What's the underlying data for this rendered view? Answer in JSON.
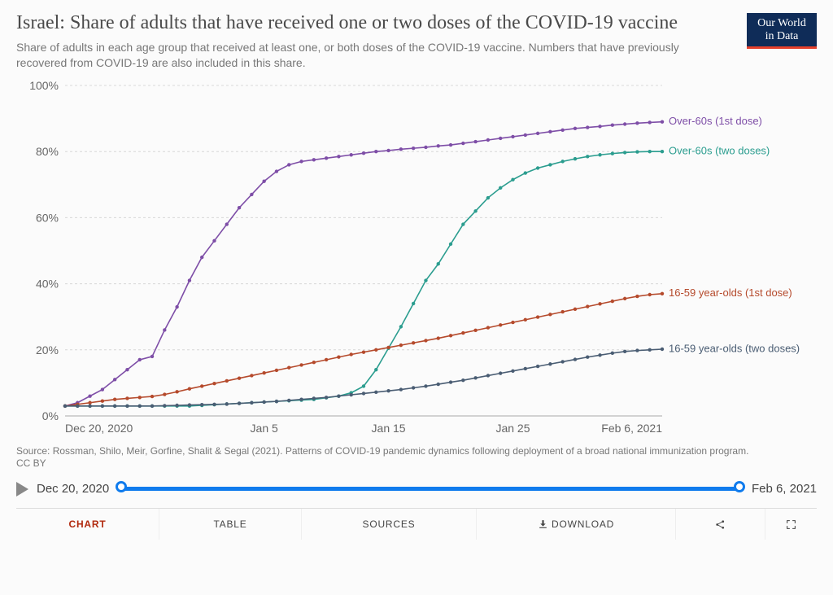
{
  "header": {
    "title": "Israel: Share of adults that have received one or two doses of the COVID-19 vaccine",
    "subtitle": "Share of adults in each age group that received at least one, or both doses of the COVID-19 vaccine. Numbers that have previously recovered from COVID-19 are also included in this share.",
    "logo_line1": "Our World",
    "logo_line2": "in Data"
  },
  "chart": {
    "type": "line",
    "ylim": [
      0,
      100
    ],
    "yticks": [
      0,
      20,
      40,
      60,
      80,
      100
    ],
    "ytick_labels": [
      "0%",
      "20%",
      "40%",
      "60%",
      "80%",
      "100%"
    ],
    "x_start": "Dec 20, 2020",
    "x_end": "Feb 6, 2021",
    "xticks": [
      0,
      16,
      26,
      36,
      48
    ],
    "xtick_labels": [
      "Dec 20, 2020",
      "Jan 5",
      "Jan 15",
      "Jan 25",
      "Feb 6, 2021"
    ],
    "n_days": 49,
    "background_color": "#fbfbfb",
    "grid_color": "#d8d8d8",
    "axis_fontsize": 14,
    "label_fontsize": 13,
    "line_width": 1.6,
    "marker_radius": 2.2,
    "series": [
      {
        "name": "Over-60s (1st dose)",
        "color": "#7e4ea7",
        "values": [
          3,
          4,
          6,
          8,
          11,
          14,
          17,
          18,
          26,
          33,
          41,
          48,
          53,
          58,
          63,
          67,
          71,
          74,
          76,
          77,
          77.5,
          78,
          78.5,
          79,
          79.5,
          80,
          80.3,
          80.7,
          81,
          81.3,
          81.7,
          82,
          82.5,
          83,
          83.5,
          84,
          84.5,
          85,
          85.5,
          86,
          86.5,
          87,
          87.3,
          87.6,
          88,
          88.3,
          88.6,
          88.8,
          89
        ]
      },
      {
        "name": "Over-60s (two doses)",
        "color": "#2b9d8f",
        "values": [
          3,
          3,
          3,
          3,
          3,
          3,
          3,
          3,
          3,
          3,
          3,
          3.2,
          3.4,
          3.6,
          3.8,
          4,
          4.2,
          4.4,
          4.6,
          4.8,
          5,
          5.5,
          6,
          7,
          9,
          14,
          20.5,
          27,
          34,
          41,
          46,
          52,
          58,
          62,
          66,
          69,
          71.5,
          73.5,
          75,
          76,
          77,
          77.8,
          78.5,
          79,
          79.4,
          79.7,
          79.9,
          80,
          80
        ]
      },
      {
        "name": "16-59 year-olds (1st dose)",
        "color": "#b54a2c",
        "values": [
          3,
          3.5,
          4,
          4.5,
          5,
          5.3,
          5.6,
          5.9,
          6.5,
          7.3,
          8.2,
          9,
          9.8,
          10.6,
          11.4,
          12.2,
          13,
          13.8,
          14.6,
          15.4,
          16.2,
          17,
          17.8,
          18.6,
          19.3,
          20,
          20.7,
          21.4,
          22.1,
          22.8,
          23.5,
          24.3,
          25.1,
          25.9,
          26.7,
          27.5,
          28.3,
          29.1,
          29.9,
          30.7,
          31.5,
          32.3,
          33.1,
          33.9,
          34.7,
          35.5,
          36.2,
          36.7,
          37
        ]
      },
      {
        "name": "16-59 year-olds (two doses)",
        "color": "#4a5d73",
        "values": [
          3,
          3,
          3,
          3,
          3,
          3,
          3,
          3,
          3.1,
          3.2,
          3.3,
          3.4,
          3.5,
          3.6,
          3.8,
          4,
          4.2,
          4.4,
          4.7,
          5,
          5.3,
          5.6,
          6,
          6.4,
          6.8,
          7.2,
          7.6,
          8,
          8.5,
          9,
          9.6,
          10.2,
          10.8,
          11.5,
          12.2,
          12.9,
          13.6,
          14.3,
          15,
          15.7,
          16.4,
          17.1,
          17.8,
          18.4,
          19,
          19.5,
          19.8,
          20,
          20.2
        ]
      }
    ]
  },
  "source": {
    "text": "Source: Rossman, Shilo, Meir, Gorfine, Shalit & Segal (2021). Patterns of COVID-19 pandemic dynamics following deployment of a broad national immunization program.",
    "license": "CC BY"
  },
  "timeline": {
    "start_label": "Dec 20, 2020",
    "end_label": "Feb 6, 2021",
    "track_color": "#0f7bed"
  },
  "tabs": {
    "chart": "CHART",
    "table": "TABLE",
    "sources": "SOURCES",
    "download": "DOWNLOAD"
  }
}
